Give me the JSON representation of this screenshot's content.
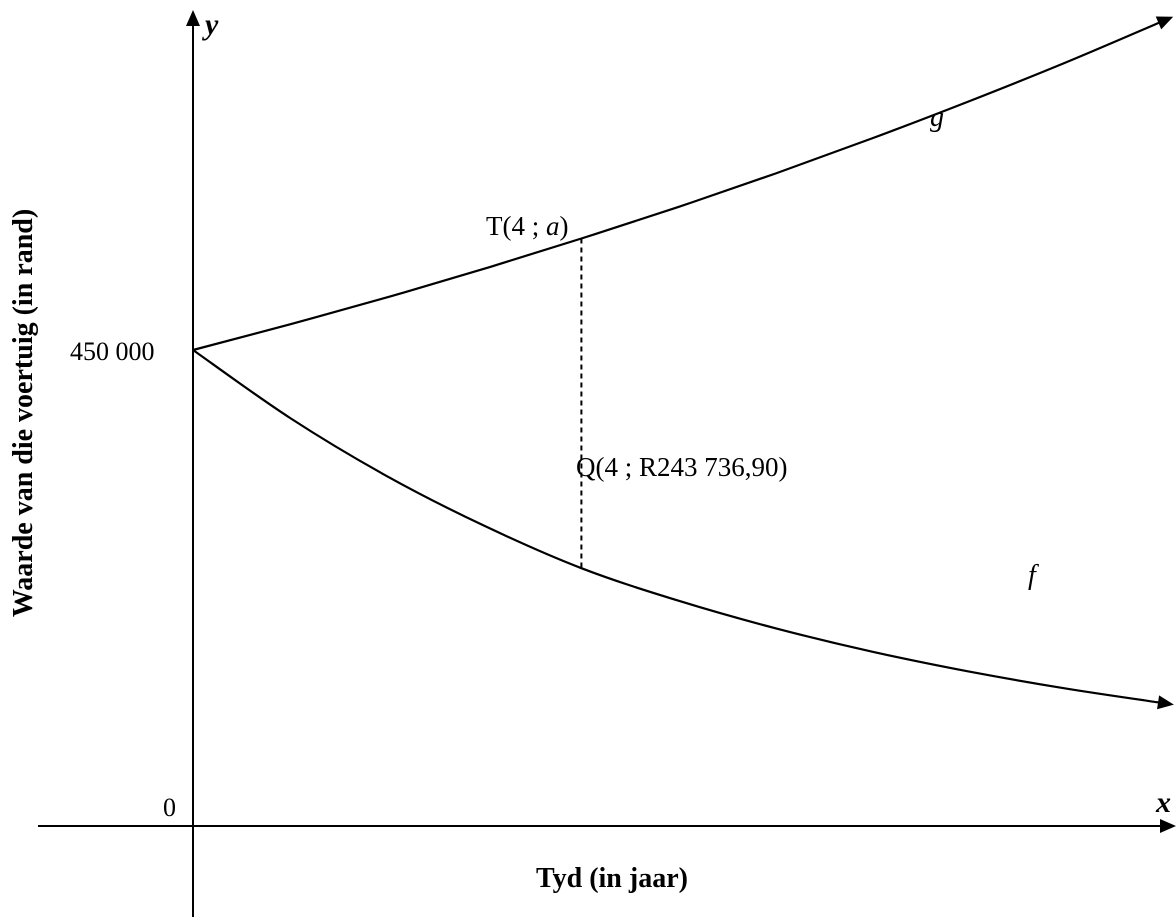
{
  "chart_data": {
    "type": "line",
    "title": "",
    "xlabel": "Tyd (in jaar)",
    "ylabel": "Waarde van die voertuig (in rand)",
    "x_axis_name": "x",
    "y_axis_name": "y",
    "origin_label": "0",
    "y_tick_value": 450000,
    "y_tick_label": "450 000",
    "grid": false,
    "legend": "none",
    "xlim": [
      0,
      10
    ],
    "series": [
      {
        "name": "g",
        "x": [
          0,
          1,
          2,
          3,
          4,
          5,
          6,
          7,
          8,
          9,
          10
        ],
        "y": [
          450000,
          474300,
          499800,
          526900,
          555400,
          585300,
          616900,
          650300,
          685400,
          722300,
          761400
        ]
      },
      {
        "name": "f",
        "x": [
          0,
          1,
          2,
          3,
          4,
          5,
          6,
          7,
          8,
          9,
          10
        ],
        "y": [
          450000,
          385700,
          330600,
          283800,
          243736.9,
          213000,
          186900,
          164700,
          145900,
          129800,
          116100
        ]
      }
    ],
    "points": [
      {
        "label": "T(4 ; a)",
        "prefix": "T(4 ; ",
        "var": "a",
        "suffix": ")",
        "x": 4,
        "y": 555400
      },
      {
        "label": "Q(4 ; R243 736,90)",
        "x": 4,
        "y": 243736.9
      }
    ]
  }
}
